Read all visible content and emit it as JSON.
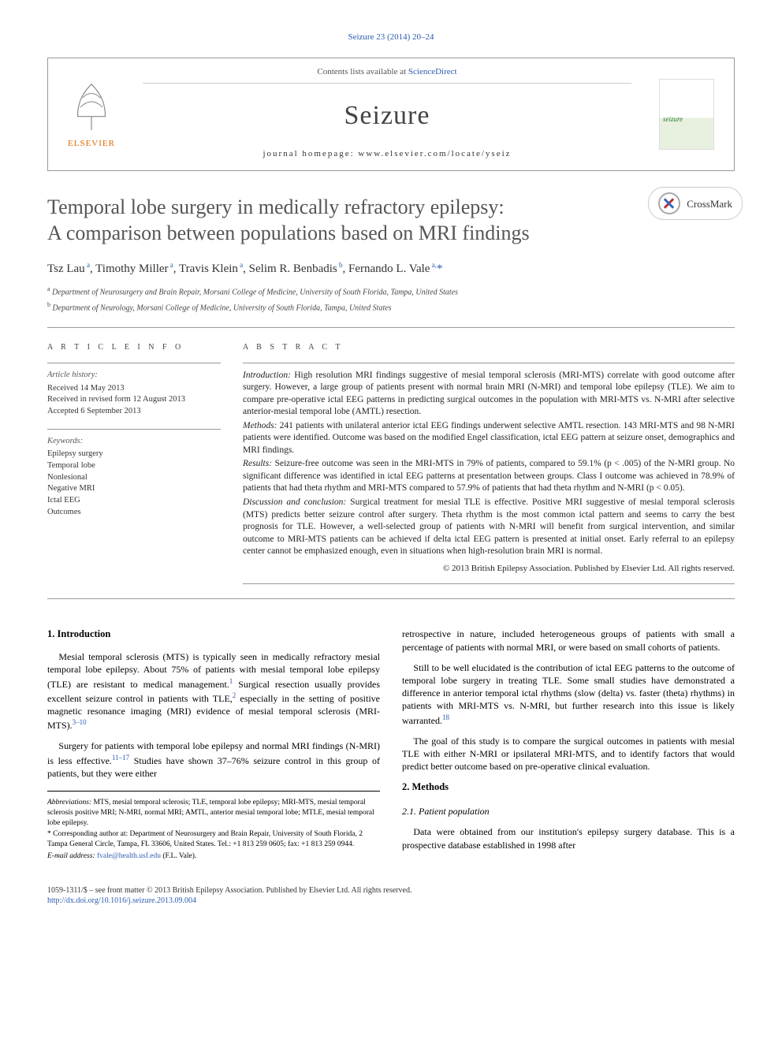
{
  "journal_ref": "Seizure 23 (2014) 20–24",
  "header": {
    "sciencedirect_prefix": "Contents lists available at ",
    "sciencedirect_link": "ScienceDirect",
    "journal_name": "Seizure",
    "homepage_label": "journal homepage: www.elsevier.com/locate/yseiz",
    "elsevier_label": "ELSEVIER",
    "cover_label": "seizure"
  },
  "crossmark_label": "CrossMark",
  "title_line1": "Temporal lobe surgery in medically refractory epilepsy:",
  "title_line2": "A comparison between populations based on MRI findings",
  "authors_html": "Tsz Lau<sup class='author-link'> a</sup>, Timothy Miller<sup class='author-link'> a</sup>, Travis Klein<sup class='author-link'> a</sup>, Selim R. Benbadis<sup class='author-link'> b</sup>, Fernando L. Vale<sup class='author-link'> a,</sup><a class='author-link' href='#'>*</a>",
  "affiliations": {
    "a": "Department of Neurosurgery and Brain Repair, Morsani College of Medicine, University of South Florida, Tampa, United States",
    "b": "Department of Neurology, Morsani College of Medicine, University of South Florida, Tampa, United States"
  },
  "article_info": {
    "heading": "A R T I C L E   I N F O",
    "history_label": "Article history:",
    "received": "Received 14 May 2013",
    "revised": "Received in revised form 12 August 2013",
    "accepted": "Accepted 6 September 2013",
    "keywords_label": "Keywords:",
    "keywords": [
      "Epilepsy surgery",
      "Temporal lobe",
      "Nonlesional",
      "Negative MRI",
      "Ictal EEG",
      "Outcomes"
    ]
  },
  "abstract": {
    "heading": "A B S T R A C T",
    "intro": "Introduction: High resolution MRI findings suggestive of mesial temporal sclerosis (MRI-MTS) correlate with good outcome after surgery. However, a large group of patients present with normal brain MRI (N-MRI) and temporal lobe epilepsy (TLE). We aim to compare pre-operative ictal EEG patterns in predicting surgical outcomes in the population with MRI-MTS vs. N-MRI after selective anterior-mesial temporal lobe (AMTL) resection.",
    "methods": "Methods: 241 patients with unilateral anterior ictal EEG findings underwent selective AMTL resection. 143 MRI-MTS and 98 N-MRI patients were identified. Outcome was based on the modified Engel classification, ictal EEG pattern at seizure onset, demographics and MRI findings.",
    "results": "Results: Seizure-free outcome was seen in the MRI-MTS in 79% of patients, compared to 59.1% (p < .005) of the N-MRI group. No significant difference was identified in ictal EEG patterns at presentation between groups. Class I outcome was achieved in 78.9% of patients that had theta rhythm and MRI-MTS compared to 57.9% of patients that had theta rhythm and N-MRI (p < 0.05).",
    "discussion": "Discussion and conclusion: Surgical treatment for mesial TLE is effective. Positive MRI suggestive of mesial temporal sclerosis (MTS) predicts better seizure control after surgery. Theta rhythm is the most common ictal pattern and seems to carry the best prognosis for TLE. However, a well-selected group of patients with N-MRI will benefit from surgical intervention, and similar outcome to MRI-MTS patients can be achieved if delta ictal EEG pattern is presented at initial onset. Early referral to an epilepsy center cannot be emphasized enough, even in situations when high-resolution brain MRI is normal.",
    "copyright": "© 2013 British Epilepsy Association. Published by Elsevier Ltd. All rights reserved."
  },
  "body": {
    "intro_heading": "1. Introduction",
    "intro_p1_pre": "Mesial temporal sclerosis (MTS) is typically seen in medically refractory mesial temporal lobe epilepsy. About 75% of patients with mesial temporal lobe epilepsy (TLE) are resistant to medical management.",
    "intro_p1_ref1": "1",
    "intro_p1_mid": " Surgical resection usually provides excellent seizure control in patients with TLE,",
    "intro_p1_ref2": "2",
    "intro_p1_post": " especially in the setting of positive magnetic resonance imaging (MRI) evidence of mesial temporal sclerosis (MRI-MTS).",
    "intro_p1_ref3": "3–10",
    "intro_p2_pre": "Surgery for patients with temporal lobe epilepsy and normal MRI findings (N-MRI) is less effective.",
    "intro_p2_ref": "11–17",
    "intro_p2_post": " Studies have shown 37–76% seizure control in this group of patients, but they were either",
    "col2_p1": "retrospective in nature, included heterogeneous groups of patients with small a percentage of patients with normal MRI, or were based on small cohorts of patients.",
    "col2_p2_pre": "Still to be well elucidated is the contribution of ictal EEG patterns to the outcome of temporal lobe surgery in treating TLE. Some small studies have demonstrated a difference in anterior temporal ictal rhythms (slow (delta) vs. faster (theta) rhythms) in patients with MRI-MTS vs. N-MRI, but further research into this issue is likely warranted.",
    "col2_p2_ref": "18",
    "col2_p3": "The goal of this study is to compare the surgical outcomes in patients with mesial TLE with either N-MRI or ipsilateral MRI-MTS, and to identify factors that would predict better outcome based on pre-operative clinical evaluation.",
    "methods_heading": "2. Methods",
    "methods_sub": "2.1. Patient population",
    "methods_p1": "Data were obtained from our institution's epilepsy surgery database. This is a prospective database established in 1998 after"
  },
  "footnotes": {
    "abbrev": "Abbreviations: MTS, mesial temporal sclerosis; TLE, temporal lobe epilepsy; MRI-MTS, mesial temporal sclerosis positive MRI; N-MRI, normal MRI; AMTL, anterior mesial temporal lobe; MTLE, mesial temporal lobe epilepsy.",
    "corr": "* Corresponding author at: Department of Neurosurgery and Brain Repair, University of South Florida, 2 Tampa General Circle, Tampa, FL 33606, United States. Tel.: +1 813 259 0605; fax: +1 813 259 0944.",
    "email_label": "E-mail address: ",
    "email": "fvale@health.usf.edu",
    "email_who": " (F.L. Vale)."
  },
  "bottom": {
    "copyright": "1059-1311/$ – see front matter © 2013 British Epilepsy Association. Published by Elsevier Ltd. All rights reserved.",
    "doi": "http://dx.doi.org/10.1016/j.seizure.2013.09.004"
  },
  "colors": {
    "link": "#2d5bb0",
    "elsevier_orange": "#e06a00",
    "text_gray": "#555555"
  }
}
